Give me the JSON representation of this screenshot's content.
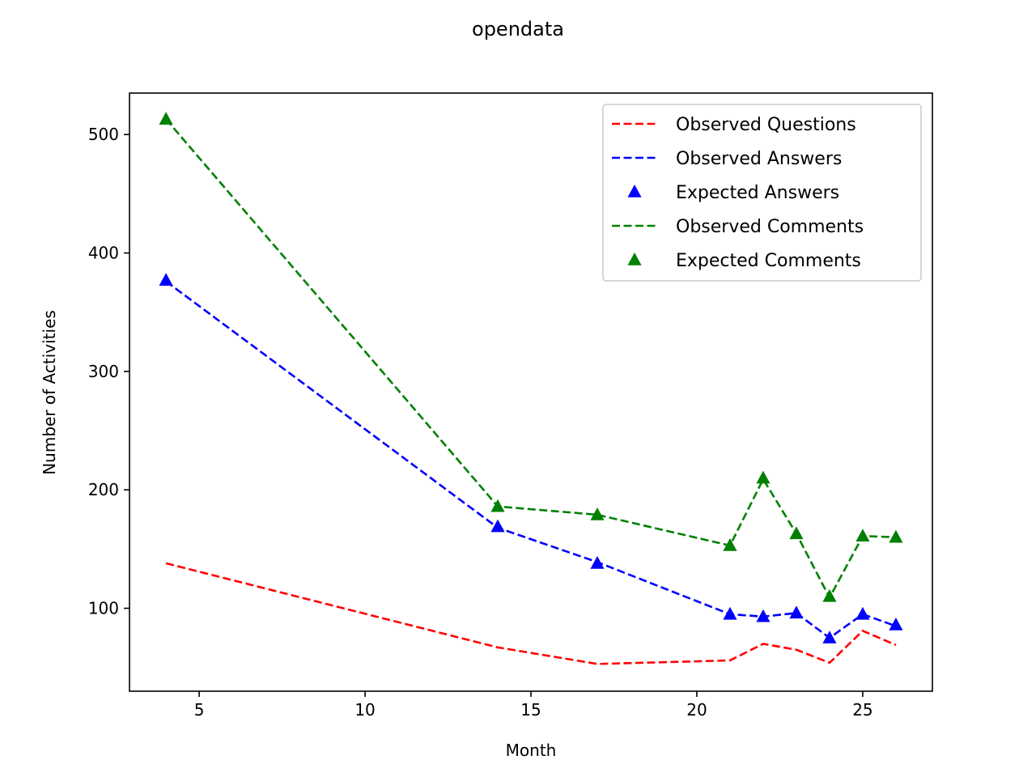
{
  "chart_data": {
    "type": "line",
    "title": "opendata",
    "xlabel": "Month",
    "ylabel": "Number of Activities",
    "xlim": [
      2.9,
      27.1
    ],
    "ylim": [
      30,
      535
    ],
    "xticks": [
      5,
      10,
      15,
      20,
      25
    ],
    "yticks": [
      100,
      200,
      300,
      400,
      500
    ],
    "grid": false,
    "legend_position": "top-right",
    "x": [
      4,
      14,
      17,
      21,
      22,
      23,
      24,
      25,
      26
    ],
    "series": [
      {
        "name": "Observed Questions",
        "style": "dashed",
        "color": "#ff0000",
        "values": [
          138,
          67,
          53,
          56,
          70,
          65,
          54,
          81,
          69
        ]
      },
      {
        "name": "Observed Answers",
        "style": "dashed",
        "color": "#0000ff",
        "values": [
          376,
          168,
          139,
          95,
          93,
          96,
          75,
          95,
          85
        ]
      },
      {
        "name": "Expected Answers",
        "style": "triangle",
        "color": "#0000ff",
        "values": [
          377,
          169,
          138,
          95,
          93,
          96,
          75,
          95,
          86
        ]
      },
      {
        "name": "Observed Comments",
        "style": "dashed",
        "color": "#008000",
        "values": [
          513,
          186,
          179,
          153,
          209,
          163,
          109,
          161,
          160
        ]
      },
      {
        "name": "Expected Comments",
        "style": "triangle",
        "color": "#008000",
        "values": [
          513,
          186,
          179,
          153,
          210,
          163,
          110,
          161,
          160
        ]
      }
    ]
  }
}
